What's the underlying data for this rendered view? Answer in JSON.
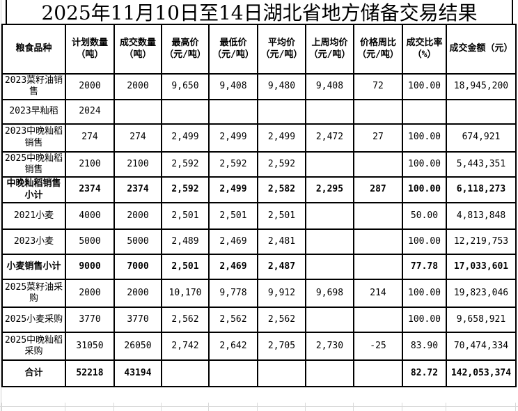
{
  "title": "2025年11月10日至14日湖北省地方储备交易结果",
  "table": {
    "headers": [
      "粮食品种",
      "计划数量\n（吨）",
      "成交数量\n（吨）",
      "最高价\n（元/吨）",
      "最低价\n（元/吨）",
      "平均价\n（元/吨）",
      "上周均价\n（元/吨）",
      "价格周比\n（元/吨）",
      "成交比率\n（%）",
      "成交金额（元）"
    ],
    "rows": [
      {
        "emphasis": false,
        "cells": [
          "2023菜籽油销售",
          "2000",
          "2000",
          "9,650",
          "9,408",
          "9,480",
          "9,408",
          "72",
          "100.00",
          "18,945,200"
        ]
      },
      {
        "emphasis": false,
        "cells": [
          "2023早籼稻",
          "2024",
          "",
          "",
          "",
          "",
          "",
          "",
          "",
          ""
        ]
      },
      {
        "emphasis": false,
        "cells": [
          "2023中晚籼稻销售",
          "274",
          "274",
          "2,499",
          "2,499",
          "2,499",
          "2,472",
          "27",
          "100.00",
          "674,921"
        ]
      },
      {
        "emphasis": false,
        "cells": [
          "2025中晚籼稻销售",
          "2100",
          "2100",
          "2,592",
          "2,592",
          "2,592",
          "",
          "",
          "100.00",
          "5,443,351"
        ]
      },
      {
        "emphasis": true,
        "cells": [
          "中晚籼稻销售小计",
          "2374",
          "2374",
          "2,592",
          "2,499",
          "2,582",
          "2,295",
          "287",
          "100.00",
          "6,118,273"
        ]
      },
      {
        "emphasis": false,
        "cells": [
          "2021小麦",
          "4000",
          "2000",
          "2,501",
          "2,501",
          "2,501",
          "",
          "",
          "50.00",
          "4,813,848"
        ]
      },
      {
        "emphasis": false,
        "cells": [
          "2023小麦",
          "5000",
          "5000",
          "2,489",
          "2,469",
          "2,481",
          "",
          "",
          "100.00",
          "12,219,753"
        ]
      },
      {
        "emphasis": true,
        "cells": [
          "小麦销售小计",
          "9000",
          "7000",
          "2,501",
          "2,469",
          "2,487",
          "",
          "",
          "77.78",
          "17,033,601"
        ]
      },
      {
        "emphasis": false,
        "cells": [
          "2025菜籽油采购",
          "2000",
          "2000",
          "10,170",
          "9,778",
          "9,912",
          "9,698",
          "214",
          "100.00",
          "19,823,046"
        ]
      },
      {
        "emphasis": false,
        "cells": [
          "2025小麦采购",
          "3770",
          "3770",
          "2,562",
          "2,562",
          "2,562",
          "",
          "",
          "100.00",
          "9,658,921"
        ]
      },
      {
        "emphasis": false,
        "cells": [
          "2025中晚籼稻采购",
          "31050",
          "26050",
          "2,742",
          "2,642",
          "2,705",
          "2,730",
          "-25",
          "83.90",
          "70,474,334"
        ]
      },
      {
        "emphasis": true,
        "cells": [
          "合计",
          "52218",
          "43194",
          "",
          "",
          "",
          "",
          "",
          "82.72",
          "142,053,374"
        ]
      }
    ]
  }
}
